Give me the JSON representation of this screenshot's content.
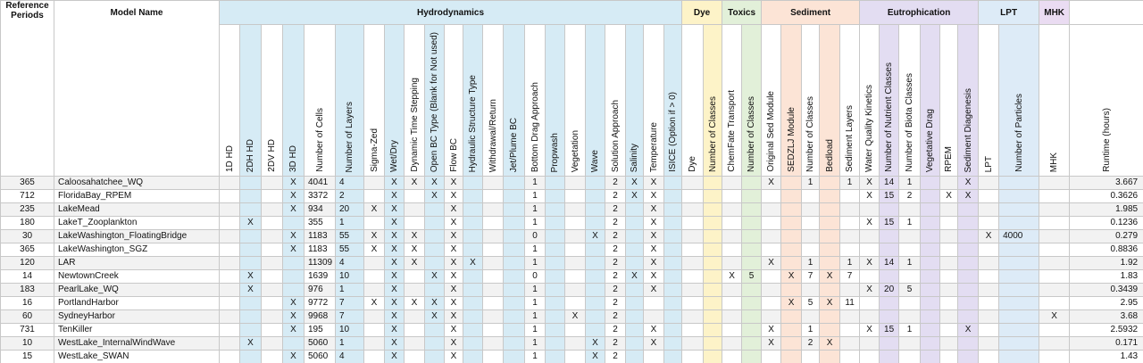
{
  "header": {
    "reference_periods": "Reference Periods",
    "model_name": "Model Name",
    "groups": [
      {
        "name": "Hydrodynamics",
        "columns": [
          "1D HD",
          "2DH HD",
          "2DV HD",
          "3D HD",
          "Number of Cells",
          "Number of Layers",
          "Sigma-Zed",
          "Wet/Dry",
          "Dynamic Time Stepping",
          "Open BC Type (Blank for Not used)",
          "Flow BC",
          "Hydraulic Structure Type",
          "Withdrawal/Return",
          "Jet/Plume BC",
          "Bottom Drag Approach",
          "Propwash",
          "Vegetation",
          "Wave",
          "Solution Approach",
          "Salinity",
          "Temperature",
          "ISICE (Option if > 0)"
        ]
      },
      {
        "name": "Dye",
        "columns": [
          "Dye",
          "Number of Classes"
        ]
      },
      {
        "name": "Toxics",
        "columns": [
          "ChemFate Transport",
          "Number of Classes"
        ]
      },
      {
        "name": "Sediment",
        "columns": [
          "Original Sed Module",
          "SEDZLJ Module",
          "Number of Classes",
          "Bedload",
          "Sediment Layers"
        ]
      },
      {
        "name": "Eutrophication",
        "columns": [
          "Water Quality Kinetics",
          "Number of Nutrient Classes",
          "Number of Biota Classes",
          "Vegetative Drag",
          "RPEM",
          "Sediment Diagenesis"
        ]
      },
      {
        "name": "LPT",
        "columns": [
          "LPT",
          "Number of Particles"
        ]
      },
      {
        "name": "MHK",
        "columns": [
          "MHK"
        ]
      }
    ],
    "runtime": "Runtime (hours)"
  },
  "table": {
    "rows": [
      [
        365,
        "Caloosahatchee_WQ",
        null,
        null,
        null,
        "X",
        4041,
        4,
        null,
        "X",
        "X",
        "X",
        "X",
        null,
        null,
        null,
        1,
        null,
        null,
        null,
        2,
        "X",
        "X",
        null,
        null,
        null,
        null,
        null,
        "X",
        null,
        1,
        null,
        1,
        "X",
        14,
        1,
        null,
        null,
        "X",
        null,
        null,
        null,
        3.667
      ],
      [
        712,
        "FloridaBay_RPEM",
        null,
        null,
        null,
        "X",
        3372,
        2,
        null,
        "X",
        null,
        "X",
        "X",
        null,
        null,
        null,
        1,
        null,
        null,
        null,
        2,
        "X",
        "X",
        null,
        null,
        null,
        null,
        null,
        null,
        null,
        null,
        null,
        null,
        "X",
        15,
        2,
        null,
        "X",
        "X",
        null,
        null,
        null,
        0.3626
      ],
      [
        235,
        "LakeMead",
        null,
        null,
        null,
        "X",
        934,
        20,
        "X",
        "X",
        null,
        null,
        "X",
        null,
        null,
        null,
        1,
        null,
        null,
        null,
        2,
        null,
        "X",
        null,
        null,
        null,
        null,
        null,
        null,
        null,
        null,
        null,
        null,
        null,
        null,
        null,
        null,
        null,
        null,
        null,
        null,
        null,
        1.985
      ],
      [
        180,
        "LakeT_Zooplankton",
        null,
        "X",
        null,
        null,
        355,
        1,
        null,
        "X",
        null,
        null,
        "X",
        null,
        null,
        null,
        1,
        null,
        null,
        null,
        2,
        null,
        "X",
        null,
        null,
        null,
        null,
        null,
        null,
        null,
        null,
        null,
        null,
        "X",
        15,
        1,
        null,
        null,
        null,
        null,
        null,
        null,
        0.1236
      ],
      [
        30,
        "LakeWashington_FloatingBridge",
        null,
        null,
        null,
        "X",
        1183,
        55,
        "X",
        "X",
        "X",
        null,
        "X",
        null,
        null,
        null,
        0,
        null,
        null,
        "X",
        2,
        null,
        "X",
        null,
        null,
        null,
        null,
        null,
        null,
        null,
        null,
        null,
        null,
        null,
        null,
        null,
        null,
        null,
        null,
        "X",
        4000,
        null,
        0.279
      ],
      [
        365,
        "LakeWashington_SGZ",
        null,
        null,
        null,
        "X",
        1183,
        55,
        "X",
        "X",
        "X",
        null,
        "X",
        null,
        null,
        null,
        1,
        null,
        null,
        null,
        2,
        null,
        "X",
        null,
        null,
        null,
        null,
        null,
        null,
        null,
        null,
        null,
        null,
        null,
        null,
        null,
        null,
        null,
        null,
        null,
        null,
        null,
        0.8836
      ],
      [
        120,
        "LAR",
        null,
        null,
        null,
        null,
        11309,
        4,
        null,
        "X",
        "X",
        null,
        "X",
        "X",
        null,
        null,
        1,
        null,
        null,
        null,
        2,
        null,
        "X",
        null,
        null,
        null,
        null,
        null,
        "X",
        null,
        1,
        null,
        1,
        "X",
        14,
        1,
        null,
        null,
        null,
        null,
        null,
        null,
        1.92
      ],
      [
        14,
        "NewtownCreek",
        null,
        "X",
        null,
        null,
        1639,
        10,
        null,
        "X",
        null,
        "X",
        "X",
        null,
        null,
        null,
        0,
        null,
        null,
        null,
        2,
        "X",
        "X",
        null,
        null,
        null,
        "X",
        5,
        null,
        "X",
        7,
        "X",
        7,
        null,
        null,
        null,
        null,
        null,
        null,
        null,
        null,
        null,
        1.83
      ],
      [
        183,
        "PearlLake_WQ",
        null,
        "X",
        null,
        null,
        976,
        1,
        null,
        "X",
        null,
        null,
        "X",
        null,
        null,
        null,
        1,
        null,
        null,
        null,
        2,
        null,
        "X",
        null,
        null,
        null,
        null,
        null,
        null,
        null,
        null,
        null,
        null,
        "X",
        20,
        5,
        null,
        null,
        null,
        null,
        null,
        null,
        0.3439
      ],
      [
        16,
        "PortlandHarbor",
        null,
        null,
        null,
        "X",
        9772,
        7,
        "X",
        "X",
        "X",
        "X",
        "X",
        null,
        null,
        null,
        1,
        null,
        null,
        null,
        2,
        null,
        null,
        null,
        null,
        null,
        null,
        null,
        null,
        "X",
        5,
        "X",
        11,
        null,
        null,
        null,
        null,
        null,
        null,
        null,
        null,
        null,
        2.95
      ],
      [
        60,
        "SydneyHarbor",
        null,
        null,
        null,
        "X",
        9968,
        7,
        null,
        "X",
        null,
        "X",
        "X",
        null,
        null,
        null,
        1,
        null,
        "X",
        null,
        2,
        null,
        null,
        null,
        null,
        null,
        null,
        null,
        null,
        null,
        null,
        null,
        null,
        null,
        null,
        null,
        null,
        null,
        null,
        null,
        null,
        "X",
        3.68
      ],
      [
        731,
        "TenKiller",
        null,
        null,
        null,
        "X",
        195,
        10,
        null,
        "X",
        null,
        null,
        "X",
        null,
        null,
        null,
        1,
        null,
        null,
        null,
        2,
        null,
        "X",
        null,
        null,
        null,
        null,
        null,
        "X",
        null,
        1,
        null,
        null,
        "X",
        15,
        1,
        null,
        null,
        "X",
        null,
        null,
        null,
        2.5932
      ],
      [
        10,
        "WestLake_InternalWindWave",
        null,
        "X",
        null,
        null,
        5060,
        1,
        null,
        "X",
        null,
        null,
        "X",
        null,
        null,
        null,
        1,
        null,
        null,
        "X",
        2,
        null,
        "X",
        null,
        null,
        null,
        null,
        null,
        "X",
        null,
        2,
        "X",
        null,
        null,
        null,
        null,
        null,
        null,
        null,
        null,
        null,
        null,
        0.171
      ],
      [
        15,
        "WestLake_SWAN",
        null,
        null,
        null,
        "X",
        5060,
        4,
        null,
        "X",
        null,
        null,
        "X",
        null,
        null,
        null,
        1,
        null,
        null,
        "X",
        2,
        null,
        null,
        null,
        null,
        null,
        null,
        null,
        null,
        null,
        null,
        null,
        null,
        null,
        null,
        null,
        null,
        null,
        null,
        null,
        null,
        null,
        1.43
      ]
    ]
  }
}
